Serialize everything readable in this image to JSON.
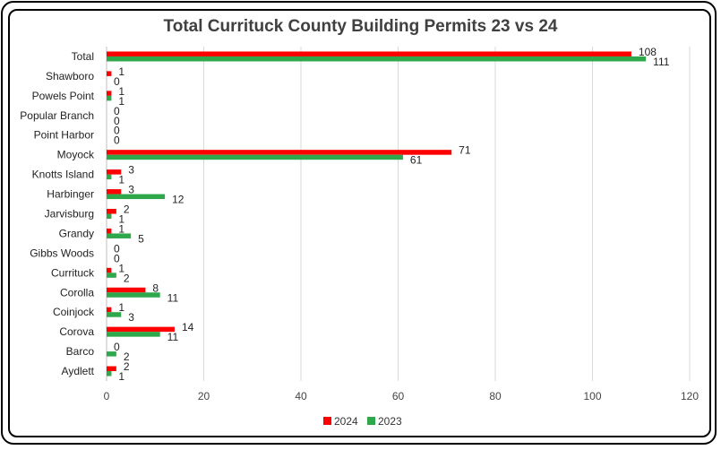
{
  "chart_data": {
    "type": "bar",
    "orientation": "horizontal",
    "title": "Total Currituck County Building Permits 23 vs 24",
    "categories": [
      "Total",
      "Shawboro",
      "Powels Point",
      "Popular Branch",
      "Point Harbor",
      "Moyock",
      "Knotts Island",
      "Harbinger",
      "Jarvisburg",
      "Grandy",
      "Gibbs Woods",
      "Currituck",
      "Corolla",
      "Coinjock",
      "Corova",
      "Barco",
      "Aydlett"
    ],
    "series": [
      {
        "name": "2024",
        "color": "#ff0000",
        "values": [
          108,
          1,
          1,
          0,
          0,
          71,
          3,
          3,
          2,
          1,
          0,
          1,
          8,
          1,
          14,
          0,
          2
        ]
      },
      {
        "name": "2023",
        "color": "#2ea84a",
        "values": [
          111,
          0,
          1,
          0,
          0,
          61,
          1,
          12,
          1,
          5,
          0,
          2,
          11,
          3,
          11,
          2,
          1
        ]
      }
    ],
    "xlim": [
      0,
      120
    ],
    "xticks": [
      0,
      20,
      40,
      60,
      80,
      100,
      120
    ],
    "grid": true,
    "legend_position": "bottom"
  }
}
